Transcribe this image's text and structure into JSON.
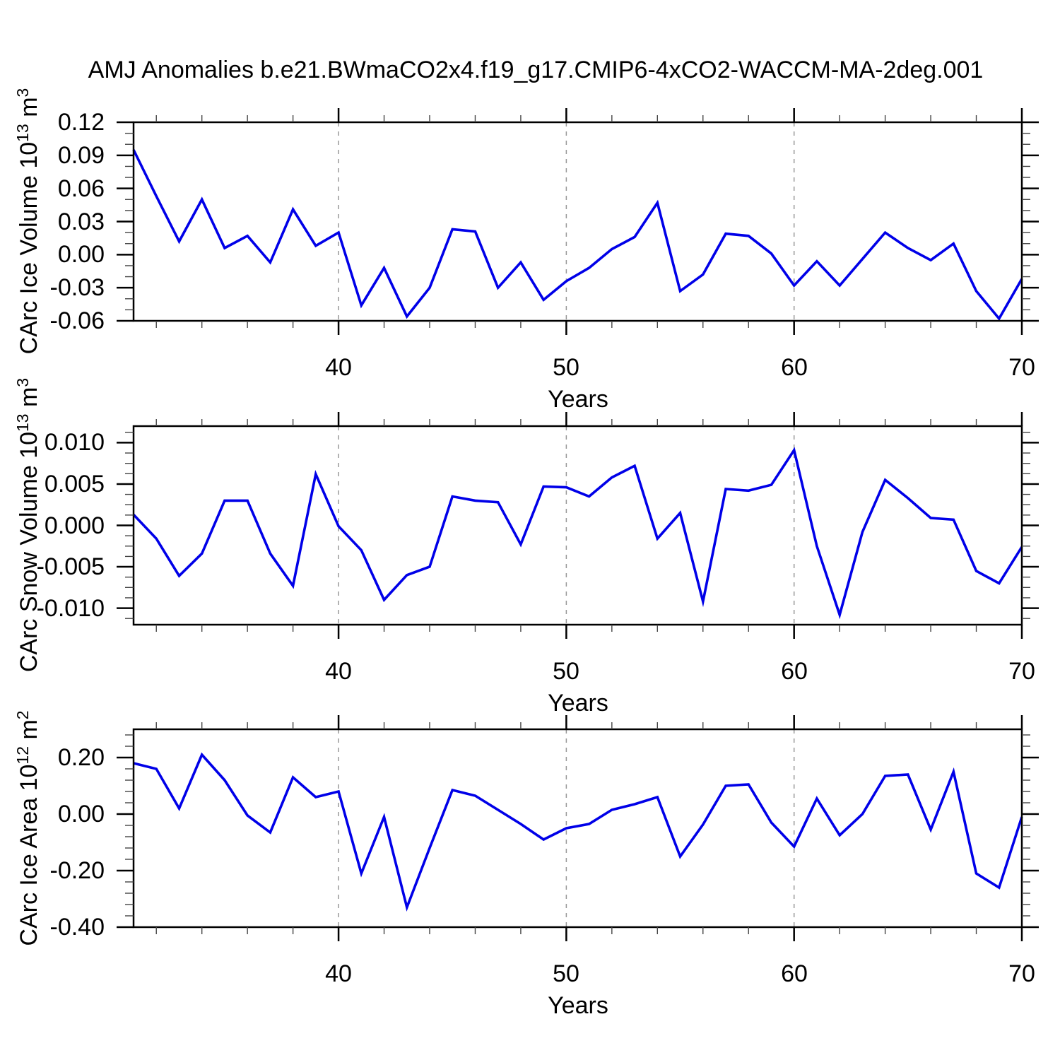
{
  "title": "AMJ Anomalies b.e21.BWmaCO2x4.f19_g17.CMIP6-4xCO2-WACCM-MA-2deg.001",
  "colors": {
    "line": "#0000e8",
    "grid": "#999999",
    "axis": "#000000",
    "minor_tick": "#444444",
    "background": "#ffffff",
    "text": "#000000"
  },
  "years": [
    31,
    32,
    33,
    34,
    35,
    36,
    37,
    38,
    39,
    40,
    41,
    42,
    43,
    44,
    45,
    46,
    47,
    48,
    49,
    50,
    51,
    52,
    53,
    54,
    55,
    56,
    57,
    58,
    59,
    60,
    61,
    62,
    63,
    64,
    65,
    66,
    67,
    68,
    69,
    70
  ],
  "chart_data": [
    {
      "type": "line",
      "series_name": "CArc Ice Volume",
      "ylabel_prefix": "CArc Ice Volume 10",
      "ylabel_sup1": "13",
      "ylabel_mid": " m",
      "ylabel_sup2": "3",
      "xlabel": "Years",
      "xlim": [
        31,
        70
      ],
      "ylim": [
        -0.06,
        0.12
      ],
      "yticks": [
        {
          "v": 0.12,
          "label": "0.12"
        },
        {
          "v": 0.09,
          "label": "0.09"
        },
        {
          "v": 0.06,
          "label": "0.06"
        },
        {
          "v": 0.03,
          "label": "0.03"
        },
        {
          "v": 0.0,
          "label": "0.00"
        },
        {
          "v": -0.03,
          "label": "-0.03"
        },
        {
          "v": -0.06,
          "label": "-0.06"
        }
      ],
      "y_minor_step": 0.01,
      "xticks": [
        {
          "v": 40,
          "label": "40"
        },
        {
          "v": 50,
          "label": "50"
        },
        {
          "v": 60,
          "label": "60"
        },
        {
          "v": 70,
          "label": "70"
        }
      ],
      "x_minor_step": 2,
      "grid_x": [
        40,
        50,
        60
      ],
      "values": [
        0.095,
        0.053,
        0.012,
        0.05,
        0.006,
        0.017,
        -0.007,
        0.041,
        0.008,
        0.02,
        -0.046,
        -0.012,
        -0.056,
        -0.03,
        0.023,
        0.021,
        -0.03,
        -0.007,
        -0.041,
        -0.024,
        -0.012,
        0.005,
        0.016,
        0.047,
        -0.033,
        -0.018,
        0.019,
        0.017,
        0.001,
        -0.028,
        -0.006,
        -0.028,
        -0.004,
        0.02,
        0.006,
        -0.005,
        0.01,
        -0.033,
        -0.058,
        -0.022
      ]
    },
    {
      "type": "line",
      "series_name": "CArc Snow Volume",
      "ylabel_prefix": "CArc Snow Volume 10",
      "ylabel_sup1": "13",
      "ylabel_mid": " m",
      "ylabel_sup2": "3",
      "xlabel": "Years",
      "xlim": [
        31,
        70
      ],
      "ylim": [
        -0.012,
        0.012
      ],
      "yticks": [
        {
          "v": 0.01,
          "label": "0.010"
        },
        {
          "v": 0.005,
          "label": "0.005"
        },
        {
          "v": 0.0,
          "label": "0.000"
        },
        {
          "v": -0.005,
          "label": "-0.005"
        },
        {
          "v": -0.01,
          "label": "-0.010"
        }
      ],
      "y_minor_step": 0.00125,
      "xticks": [
        {
          "v": 40,
          "label": "40"
        },
        {
          "v": 50,
          "label": "50"
        },
        {
          "v": 60,
          "label": "60"
        },
        {
          "v": 70,
          "label": "70"
        }
      ],
      "x_minor_step": 2,
      "grid_x": [
        40,
        50,
        60
      ],
      "values": [
        0.0013,
        -0.0016,
        -0.0061,
        -0.0034,
        0.003,
        0.003,
        -0.0034,
        -0.0073,
        0.0062,
        -0.0001,
        -0.003,
        -0.009,
        -0.006,
        -0.005,
        0.0035,
        0.003,
        0.0028,
        -0.0023,
        0.0047,
        0.0046,
        0.0035,
        0.0058,
        0.0072,
        -0.0016,
        0.0015,
        -0.0092,
        0.0044,
        0.0042,
        0.0049,
        0.0091,
        -0.0025,
        -0.0108,
        -0.0008,
        0.0055,
        0.0033,
        0.0009,
        0.0007,
        -0.0055,
        -0.007,
        -0.0026
      ]
    },
    {
      "type": "line",
      "series_name": "CArc Ice Area",
      "ylabel_prefix": "CArc Ice Area 10",
      "ylabel_sup1": "12",
      "ylabel_mid": " m",
      "ylabel_sup2": "2",
      "xlabel": "Years",
      "xlim": [
        31,
        70
      ],
      "ylim": [
        -0.4,
        0.3
      ],
      "yticks": [
        {
          "v": 0.2,
          "label": "0.20"
        },
        {
          "v": 0.0,
          "label": "0.00"
        },
        {
          "v": -0.2,
          "label": "-0.20"
        },
        {
          "v": -0.4,
          "label": "-0.40"
        }
      ],
      "y_minor_step": 0.04,
      "xticks": [
        {
          "v": 40,
          "label": "40"
        },
        {
          "v": 50,
          "label": "50"
        },
        {
          "v": 60,
          "label": "60"
        },
        {
          "v": 70,
          "label": "70"
        }
      ],
      "x_minor_step": 2,
      "grid_x": [
        40,
        50,
        60
      ],
      "values": [
        0.18,
        0.16,
        0.02,
        0.21,
        0.12,
        -0.005,
        -0.065,
        0.13,
        0.06,
        0.08,
        -0.21,
        -0.01,
        -0.33,
        -0.12,
        0.085,
        0.065,
        0.015,
        -0.035,
        -0.09,
        -0.05,
        -0.035,
        0.015,
        0.035,
        0.06,
        -0.15,
        -0.037,
        0.1,
        0.105,
        -0.03,
        -0.115,
        0.055,
        -0.075,
        0.0,
        0.135,
        0.14,
        -0.055,
        0.15,
        -0.21,
        -0.26,
        -0.01
      ]
    }
  ]
}
